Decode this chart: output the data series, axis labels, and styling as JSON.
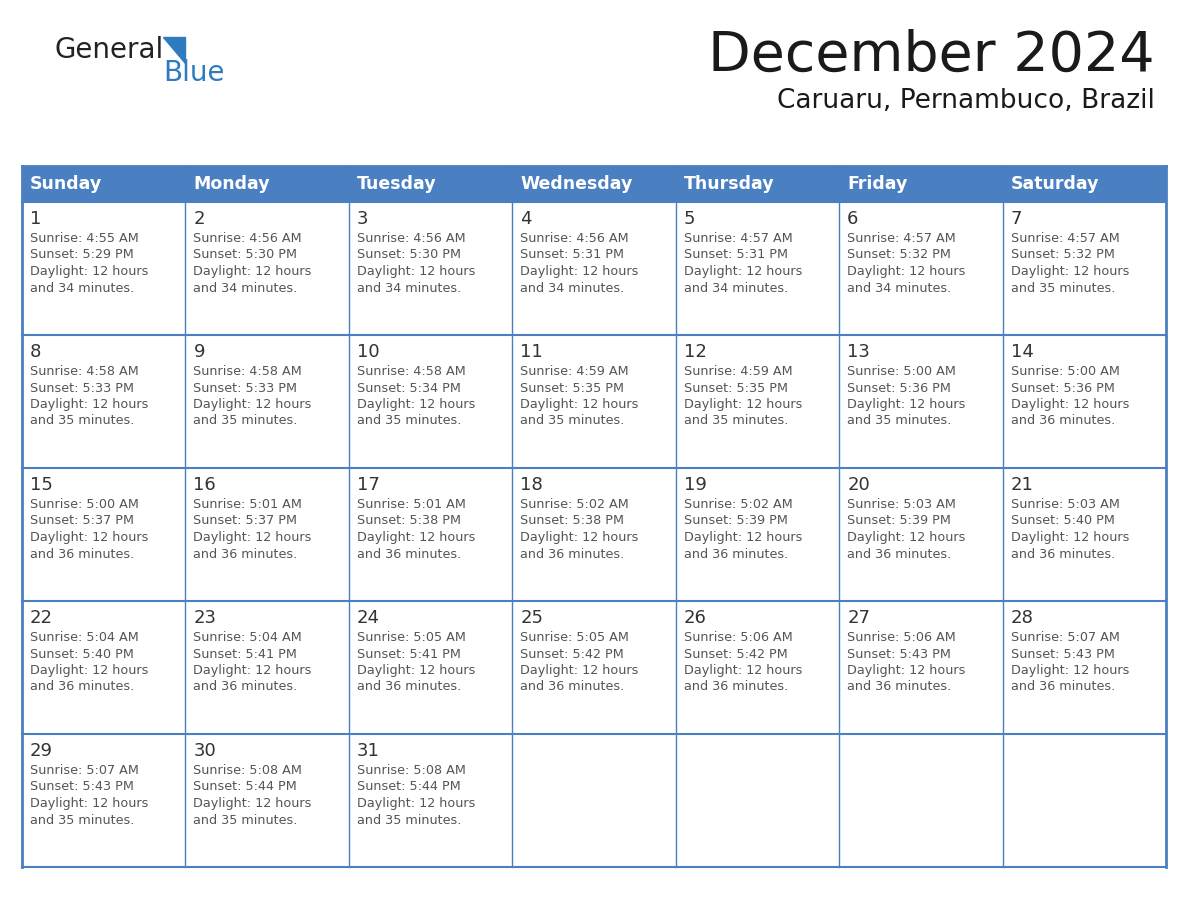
{
  "title": "December 2024",
  "subtitle": "Caruaru, Pernambuco, Brazil",
  "header_bg": "#4a7fc1",
  "header_text": "#ffffff",
  "cell_bg": "#ffffff",
  "day_number_color": "#333333",
  "cell_text_color": "#555555",
  "days_of_week": [
    "Sunday",
    "Monday",
    "Tuesday",
    "Wednesday",
    "Thursday",
    "Friday",
    "Saturday"
  ],
  "logo_general_color": "#222222",
  "logo_blue_color": "#2e7bbf",
  "calendar": [
    [
      {
        "day": 1,
        "sunrise": "4:55 AM",
        "sunset": "5:29 PM",
        "daylight": "34 minutes."
      },
      {
        "day": 2,
        "sunrise": "4:56 AM",
        "sunset": "5:30 PM",
        "daylight": "34 minutes."
      },
      {
        "day": 3,
        "sunrise": "4:56 AM",
        "sunset": "5:30 PM",
        "daylight": "34 minutes."
      },
      {
        "day": 4,
        "sunrise": "4:56 AM",
        "sunset": "5:31 PM",
        "daylight": "34 minutes."
      },
      {
        "day": 5,
        "sunrise": "4:57 AM",
        "sunset": "5:31 PM",
        "daylight": "34 minutes."
      },
      {
        "day": 6,
        "sunrise": "4:57 AM",
        "sunset": "5:32 PM",
        "daylight": "34 minutes."
      },
      {
        "day": 7,
        "sunrise": "4:57 AM",
        "sunset": "5:32 PM",
        "daylight": "35 minutes."
      }
    ],
    [
      {
        "day": 8,
        "sunrise": "4:58 AM",
        "sunset": "5:33 PM",
        "daylight": "35 minutes."
      },
      {
        "day": 9,
        "sunrise": "4:58 AM",
        "sunset": "5:33 PM",
        "daylight": "35 minutes."
      },
      {
        "day": 10,
        "sunrise": "4:58 AM",
        "sunset": "5:34 PM",
        "daylight": "35 minutes."
      },
      {
        "day": 11,
        "sunrise": "4:59 AM",
        "sunset": "5:35 PM",
        "daylight": "35 minutes."
      },
      {
        "day": 12,
        "sunrise": "4:59 AM",
        "sunset": "5:35 PM",
        "daylight": "35 minutes."
      },
      {
        "day": 13,
        "sunrise": "5:00 AM",
        "sunset": "5:36 PM",
        "daylight": "35 minutes."
      },
      {
        "day": 14,
        "sunrise": "5:00 AM",
        "sunset": "5:36 PM",
        "daylight": "36 minutes."
      }
    ],
    [
      {
        "day": 15,
        "sunrise": "5:00 AM",
        "sunset": "5:37 PM",
        "daylight": "36 minutes."
      },
      {
        "day": 16,
        "sunrise": "5:01 AM",
        "sunset": "5:37 PM",
        "daylight": "36 minutes."
      },
      {
        "day": 17,
        "sunrise": "5:01 AM",
        "sunset": "5:38 PM",
        "daylight": "36 minutes."
      },
      {
        "day": 18,
        "sunrise": "5:02 AM",
        "sunset": "5:38 PM",
        "daylight": "36 minutes."
      },
      {
        "day": 19,
        "sunrise": "5:02 AM",
        "sunset": "5:39 PM",
        "daylight": "36 minutes."
      },
      {
        "day": 20,
        "sunrise": "5:03 AM",
        "sunset": "5:39 PM",
        "daylight": "36 minutes."
      },
      {
        "day": 21,
        "sunrise": "5:03 AM",
        "sunset": "5:40 PM",
        "daylight": "36 minutes."
      }
    ],
    [
      {
        "day": 22,
        "sunrise": "5:04 AM",
        "sunset": "5:40 PM",
        "daylight": "36 minutes."
      },
      {
        "day": 23,
        "sunrise": "5:04 AM",
        "sunset": "5:41 PM",
        "daylight": "36 minutes."
      },
      {
        "day": 24,
        "sunrise": "5:05 AM",
        "sunset": "5:41 PM",
        "daylight": "36 minutes."
      },
      {
        "day": 25,
        "sunrise": "5:05 AM",
        "sunset": "5:42 PM",
        "daylight": "36 minutes."
      },
      {
        "day": 26,
        "sunrise": "5:06 AM",
        "sunset": "5:42 PM",
        "daylight": "36 minutes."
      },
      {
        "day": 27,
        "sunrise": "5:06 AM",
        "sunset": "5:43 PM",
        "daylight": "36 minutes."
      },
      {
        "day": 28,
        "sunrise": "5:07 AM",
        "sunset": "5:43 PM",
        "daylight": "36 minutes."
      }
    ],
    [
      {
        "day": 29,
        "sunrise": "5:07 AM",
        "sunset": "5:43 PM",
        "daylight": "35 minutes."
      },
      {
        "day": 30,
        "sunrise": "5:08 AM",
        "sunset": "5:44 PM",
        "daylight": "35 minutes."
      },
      {
        "day": 31,
        "sunrise": "5:08 AM",
        "sunset": "5:44 PM",
        "daylight": "35 minutes."
      },
      null,
      null,
      null,
      null
    ]
  ]
}
